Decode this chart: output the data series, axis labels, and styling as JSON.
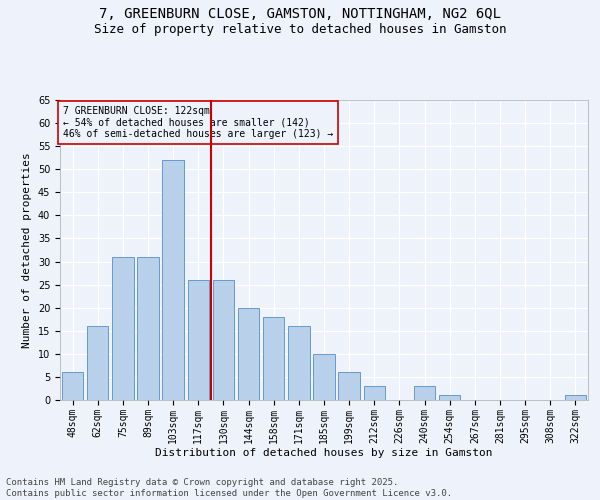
{
  "title": "7, GREENBURN CLOSE, GAMSTON, NOTTINGHAM, NG2 6QL",
  "subtitle": "Size of property relative to detached houses in Gamston",
  "xlabel": "Distribution of detached houses by size in Gamston",
  "ylabel": "Number of detached properties",
  "footer": "Contains HM Land Registry data © Crown copyright and database right 2025.\nContains public sector information licensed under the Open Government Licence v3.0.",
  "categories": [
    "48sqm",
    "62sqm",
    "75sqm",
    "89sqm",
    "103sqm",
    "117sqm",
    "130sqm",
    "144sqm",
    "158sqm",
    "171sqm",
    "185sqm",
    "199sqm",
    "212sqm",
    "226sqm",
    "240sqm",
    "254sqm",
    "267sqm",
    "281sqm",
    "295sqm",
    "308sqm",
    "322sqm"
  ],
  "values": [
    6,
    16,
    31,
    31,
    52,
    26,
    26,
    20,
    18,
    16,
    10,
    6,
    3,
    0,
    3,
    1,
    0,
    0,
    0,
    0,
    1
  ],
  "bar_color": "#b8d0ea",
  "bar_edge_color": "#6699cc",
  "vline_x_index": 5.5,
  "annotation_text_line1": "7 GREENBURN CLOSE: 122sqm",
  "annotation_text_line2": "← 54% of detached houses are smaller (142)",
  "annotation_text_line3": "46% of semi-detached houses are larger (123) →",
  "annotation_box_color": "#cc0000",
  "vline_color": "#cc0000",
  "ylim": [
    0,
    65
  ],
  "yticks": [
    0,
    5,
    10,
    15,
    20,
    25,
    30,
    35,
    40,
    45,
    50,
    55,
    60,
    65
  ],
  "background_color": "#eef2fb",
  "grid_color": "#ffffff",
  "title_fontsize": 10,
  "subtitle_fontsize": 9,
  "ylabel_fontsize": 8,
  "xlabel_fontsize": 8,
  "tick_fontsize": 7,
  "annotation_fontsize": 7,
  "footer_fontsize": 6.5
}
